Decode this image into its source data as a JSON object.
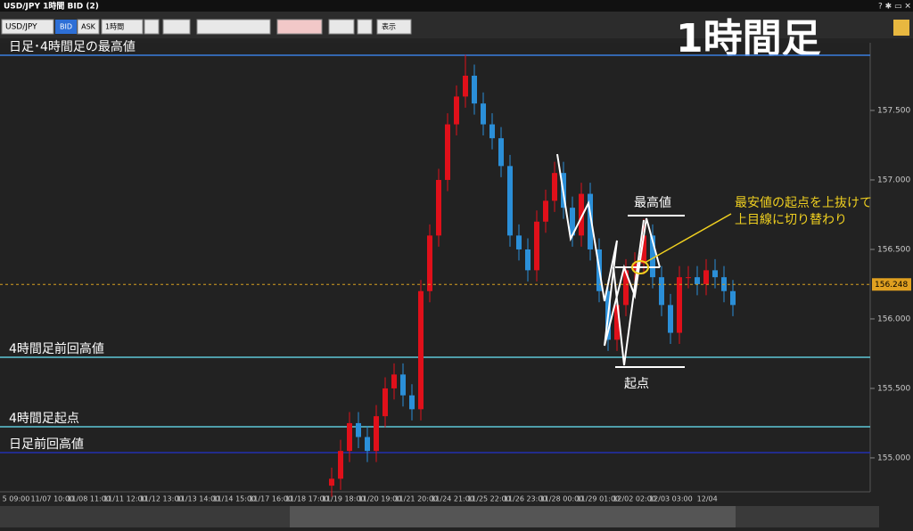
{
  "ui": {
    "window_title": "USD/JPY 1時間 BID (2)",
    "symbol": "USD/JPY",
    "bid": "BID",
    "ask": "ASK",
    "timeframe": "1時間",
    "view": "表示"
  },
  "chart_data": {
    "type": "candlestick",
    "title": "1時間足",
    "ylim": [
      154.756,
      157.987
    ],
    "yticks": [
      {
        "value": 155,
        "label": "155.000"
      },
      {
        "value": 155.5,
        "label": "155.500"
      },
      {
        "value": 156,
        "label": "156.000"
      },
      {
        "value": 156.5,
        "label": "156.500"
      },
      {
        "value": 157,
        "label": "157.000"
      },
      {
        "value": 157.5,
        "label": "157.500"
      }
    ],
    "xlabels": [
      "5 09:00",
      "11/07 10:00",
      "11/08 11:00",
      "11/11 12:00",
      "11/12 13:00",
      "11/13 14:00",
      "11/14 15:00",
      "11/17 16:00",
      "11/18 17:00",
      "11/19 18:00",
      "11/20 19:00",
      "11/21 20:00",
      "11/24 21:00",
      "11/25 22:00",
      "11/26 23:00",
      "11/28 00:00",
      "11/29 01:00",
      "12/02 02:00",
      "12/03 03:00",
      "12/04"
    ],
    "up_color": "#e0101a",
    "down_color": "#2b8fd8",
    "open": [
      154.8,
      154.85,
      155.05,
      155.25,
      155.15,
      155.05,
      155.3,
      155.5,
      155.6,
      155.45,
      155.35,
      156.2,
      156.6,
      157.0,
      157.4,
      157.6,
      157.75,
      157.55,
      157.4,
      157.3,
      157.1,
      156.6,
      156.5,
      156.35,
      156.7,
      156.85,
      157.05,
      156.8,
      156.6,
      156.9,
      156.5,
      156.2,
      155.85,
      156.1,
      156.35,
      156.4,
      156.6,
      156.3,
      156.1,
      155.9,
      156.3,
      156.3,
      156.25,
      156.35,
      156.3,
      156.2
    ],
    "high": [
      154.93,
      155.13,
      155.33,
      155.33,
      155.23,
      155.38,
      155.58,
      155.68,
      155.68,
      155.53,
      156.28,
      156.68,
      157.08,
      157.48,
      157.68,
      157.9,
      157.83,
      157.63,
      157.48,
      157.38,
      157.18,
      156.68,
      156.58,
      156.78,
      156.93,
      157.13,
      157.13,
      156.88,
      156.98,
      156.98,
      156.58,
      156.28,
      156.18,
      156.43,
      156.48,
      156.72,
      156.68,
      156.38,
      156.18,
      156.38,
      156.38,
      156.38,
      156.43,
      156.43,
      156.38,
      156.28
    ],
    "low": [
      154.72,
      154.77,
      154.97,
      155.07,
      154.97,
      154.97,
      155.22,
      155.42,
      155.37,
      155.27,
      155.27,
      156.12,
      156.52,
      156.92,
      157.32,
      157.52,
      157.47,
      157.32,
      157.22,
      157.02,
      156.52,
      156.42,
      156.27,
      156.27,
      156.62,
      156.77,
      156.72,
      156.52,
      156.52,
      156.42,
      156.12,
      155.77,
      155.77,
      156.02,
      156.27,
      156.32,
      156.22,
      156.02,
      155.82,
      155.82,
      156.22,
      156.17,
      156.17,
      156.22,
      156.12,
      156.02
    ],
    "close": [
      154.85,
      155.05,
      155.25,
      155.15,
      155.05,
      155.3,
      155.5,
      155.6,
      155.45,
      155.35,
      156.2,
      156.6,
      157.0,
      157.4,
      157.6,
      157.75,
      157.55,
      157.4,
      157.3,
      157.1,
      156.6,
      156.5,
      156.35,
      156.7,
      156.85,
      157.05,
      156.8,
      156.6,
      156.9,
      156.5,
      156.2,
      155.85,
      156.1,
      156.35,
      156.4,
      156.6,
      156.3,
      156.1,
      155.9,
      156.3,
      156.3,
      156.25,
      156.35,
      156.3,
      156.2,
      156.1
    ],
    "levels": [
      {
        "value": 157.897,
        "label": "日足･4時間足の最高値",
        "color": "#3a7ee0"
      },
      {
        "value": 155.724,
        "label": "4時間足前回高値",
        "color": "#5ec8d8"
      },
      {
        "value": 155.224,
        "label": "4時間足起点",
        "color": "#5ec8d8"
      },
      {
        "value": 155.038,
        "label": "日足前回高値",
        "color": "#2230b0"
      }
    ],
    "current_price": 156.248,
    "annotations": {
      "high": "最高値",
      "origin": "起点",
      "note_line1": "最安値の起点を上抜けて",
      "note_line2": "上目線に切り替わり"
    }
  }
}
